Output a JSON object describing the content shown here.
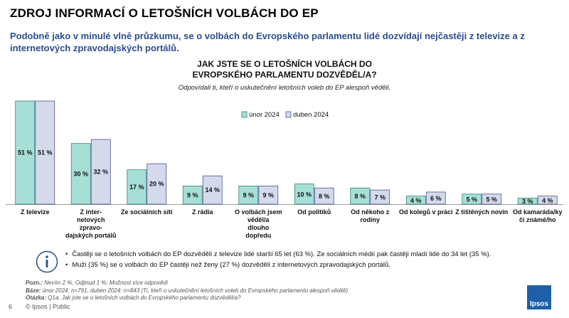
{
  "page": {
    "title": "ZDROJ INFORMACÍ O LETOŠNÍCH VOLBÁCH DO EP",
    "headline": "Podobně jako v minulé vlně průzkumu, se o volbách do Evropského parlamentu lidé dozvídají nejčastěji z televize a z internetových zpravodajských portálů.",
    "question_line1": "JAK JSTE SE O LETOŠNÍCH VOLBÁCH DO",
    "question_line2": "EVROPSKÉHO PARLAMENTU DOZVĚDĚL/A?",
    "question_sub": "Odpovídali ti, kteří o uskutečnění letošních voleb do EP alespoň věděli."
  },
  "chart_data": {
    "type": "bar",
    "categories": [
      [
        "Z televize"
      ],
      [
        "Z inter-",
        "netových",
        "zpravo-",
        "dajských portálů"
      ],
      [
        "Ze sociálních sítí"
      ],
      [
        "Z rádia"
      ],
      [
        "O volbách jsem",
        "věděl/a",
        "dlouho",
        "dopředu"
      ],
      [
        "Od politiků"
      ],
      [
        "Od někoho z",
        "rodiny"
      ],
      [
        "Od kolegů v práci"
      ],
      [
        "Z tištěných novin"
      ],
      [
        "Od kamaráda/ky",
        "či známé/ho"
      ]
    ],
    "series": [
      {
        "name": "únor 2024",
        "color": "#a6dfd5",
        "border": "#3d7e78",
        "values": [
          51,
          30,
          17,
          9,
          9,
          10,
          8,
          4,
          5,
          3
        ]
      },
      {
        "name": "duben 2024",
        "color": "#d4d9ec",
        "border": "#4a5590",
        "values": [
          51,
          32,
          20,
          14,
          9,
          8,
          7,
          6,
          5,
          4
        ]
      }
    ],
    "ylim": [
      0,
      51
    ],
    "value_suffix": " %",
    "legend_position": "top-center"
  },
  "info": {
    "items": [
      "Častěji se o letošních volbách do EP dozvěděli z televize lidé starší 65 let (63 %). Ze sociálních médií pak častěji mladí lidé do 34 let (35 %).",
      "Muži (35 %) se o volbách do EP častěji než ženy (27 %) dozvěděli z internetových zpravodajských portálů."
    ]
  },
  "notes": {
    "note_label": "Pozn.:",
    "note_text": "Nevím 2 %, Odjinud 1 %; Možnost více odpovědí",
    "base_label": "Báze:",
    "base_text": "únor 2024: n=791, duben 2024: n=843 (Ti, kteří o uskutečnění letošních voleb do Evropského parlamentu alespoň věděli)",
    "question_label": "Otázka:",
    "question_text": "Q1a. Jak jste se o letošních volbách do Evropského parlamentu dozvěděl/a?"
  },
  "footer": {
    "page_number": "6",
    "copyright": "© Ipsos | Public",
    "logo_text": "Ipsos"
  }
}
